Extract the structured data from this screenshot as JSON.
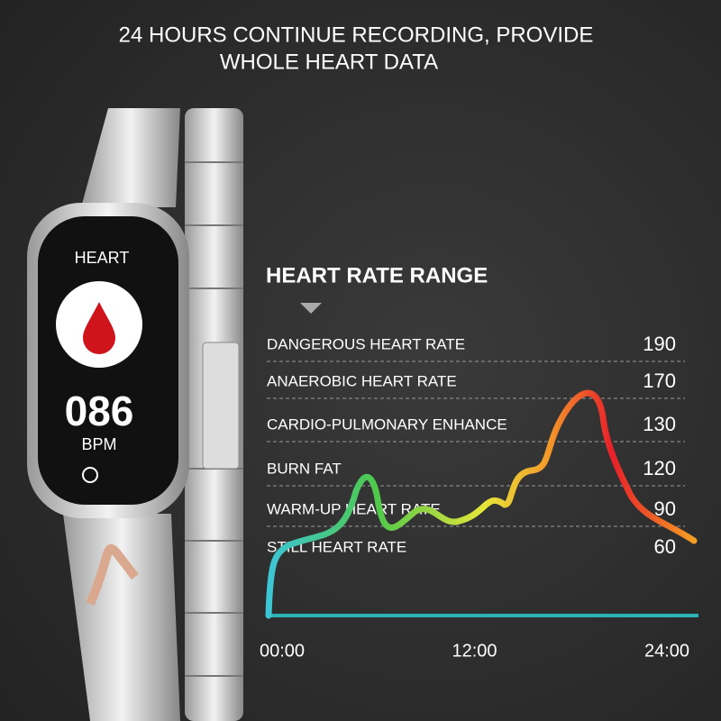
{
  "header": {
    "lines": [
      "24 HOURS CONTINUE RECORDING, PROVIDE",
      "WHOLE HEART DATA"
    ]
  },
  "watch": {
    "screen_title": "HEART",
    "reading": "086",
    "unit": "BPM"
  },
  "panel": {
    "title": "HEART RATE RANGE",
    "zones": [
      {
        "label": "DANGEROUS HEART RATE",
        "value": 190
      },
      {
        "label": "ANAEROBIC HEART RATE",
        "value": 170
      },
      {
        "label": "CARDIO-PULMONARY ENHANCE",
        "value": 130
      },
      {
        "label": "BURN FAT",
        "value": 120
      },
      {
        "label": "WARM-UP HEART RATE",
        "value": 90
      },
      {
        "label": "STILL HEART RATE",
        "value": 60
      }
    ],
    "time_labels": [
      "00:00",
      "12:00",
      "24:00"
    ]
  }
}
